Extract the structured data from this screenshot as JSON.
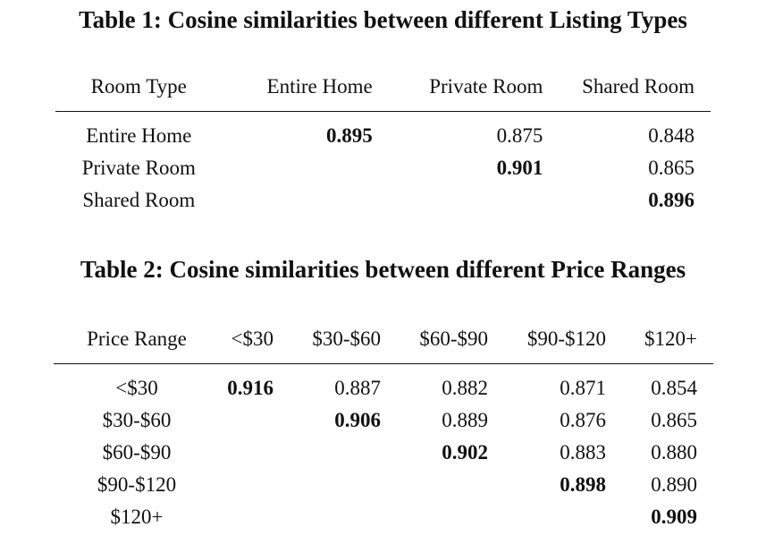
{
  "table1": {
    "caption": "Table 1: Cosine similarities between different Listing Types",
    "header": [
      "Room Type",
      "Entire Home",
      "Private Room",
      "Shared Room"
    ],
    "rows": [
      {
        "label": "Entire Home",
        "cells": [
          "0.895",
          "0.875",
          "0.848"
        ]
      },
      {
        "label": "Private Room",
        "cells": [
          "",
          "0.901",
          "0.865"
        ]
      },
      {
        "label": "Shared Room",
        "cells": [
          "",
          "",
          "0.896"
        ]
      }
    ]
  },
  "table2": {
    "caption": "Table 2: Cosine similarities between different Price Ranges",
    "header": [
      "Price Range",
      "<$30",
      "$30-$60",
      "$60-$90",
      "$90-$120",
      "$120+"
    ],
    "rows": [
      {
        "label": "<$30",
        "cells": [
          "0.916",
          "0.887",
          "0.882",
          "0.871",
          "0.854"
        ]
      },
      {
        "label": "$30-$60",
        "cells": [
          "",
          "0.906",
          "0.889",
          "0.876",
          "0.865"
        ]
      },
      {
        "label": "$60-$90",
        "cells": [
          "",
          "",
          "0.902",
          "0.883",
          "0.880"
        ]
      },
      {
        "label": "$90-$120",
        "cells": [
          "",
          "",
          "",
          "0.898",
          "0.890"
        ]
      },
      {
        "label": "$120+",
        "cells": [
          "",
          "",
          "",
          "",
          "0.909"
        ]
      }
    ]
  }
}
